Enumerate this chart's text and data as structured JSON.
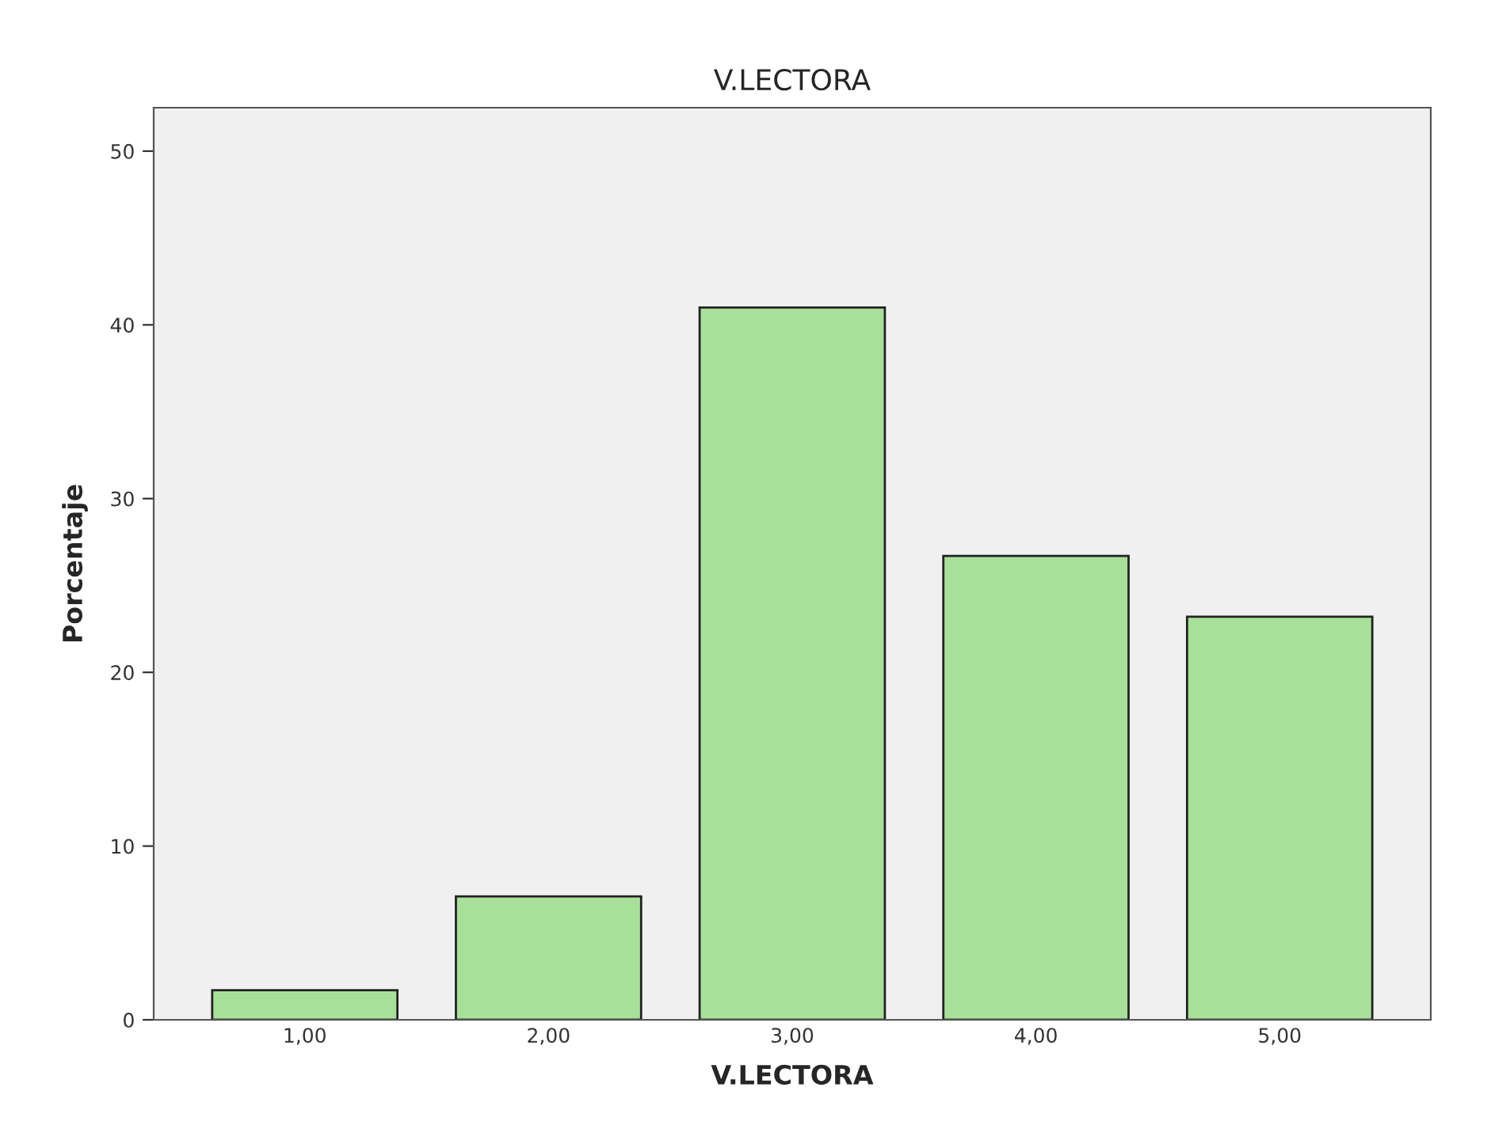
{
  "chart_data": {
    "type": "bar",
    "title": "V.LECTORA",
    "xlabel": "V.LECTORA",
    "ylabel": "Porcentaje",
    "categories": [
      "1,00",
      "2,00",
      "3,00",
      "4,00",
      "5,00"
    ],
    "values": [
      1.7,
      7.1,
      41.0,
      26.7,
      23.2
    ],
    "color": "#a8e09a",
    "ylim": [
      0,
      52.5
    ],
    "yticks": [
      0,
      10,
      20,
      30,
      40,
      50
    ],
    "grid": false,
    "legend": false
  }
}
